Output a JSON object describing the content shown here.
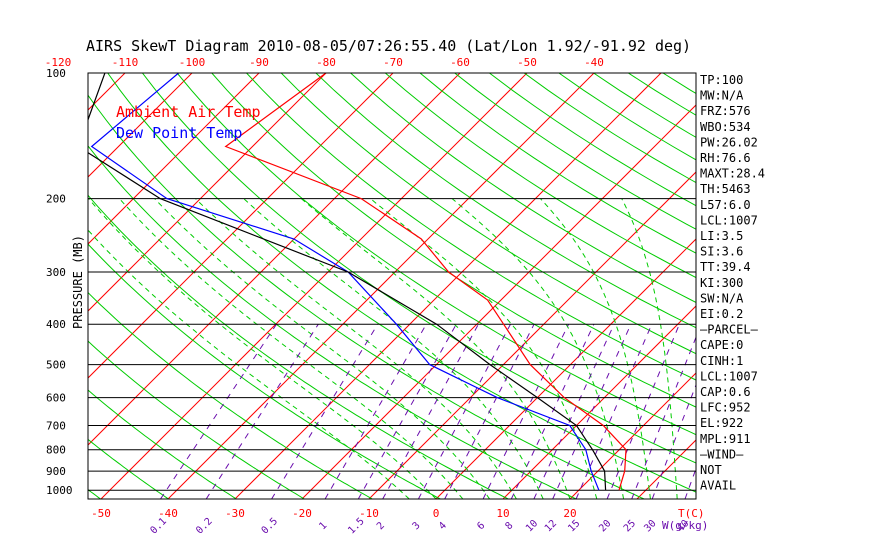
{
  "chart_data": {
    "type": "line",
    "title": "AIRS SkewT Diagram 2010-08-05/07:26:55.40 (Lat/Lon 1.92/-91.92 deg)",
    "ylabel": "PRESSURE (MB)",
    "xlabel_bottom_temp": "T(C)",
    "xlabel_bottom_mix": "W(g/kg)",
    "ylim": [
      1050,
      100
    ],
    "y_scale": "log",
    "xlim_bottom": [
      -50,
      30
    ],
    "grid": true,
    "legend_placement": "top-left",
    "pressure_ticks": [
      100,
      200,
      300,
      400,
      500,
      600,
      700,
      800,
      900,
      1000
    ],
    "temp_ticks_bottom": [
      -50,
      -40,
      -30,
      -20,
      -10,
      0,
      10,
      20
    ],
    "temp_ticks_top": [
      -120,
      -110,
      -100,
      -90,
      -80,
      -70,
      -60,
      -50,
      -40
    ],
    "mixing_ratio_ticks": [
      "0.1",
      "0.2",
      "0.5",
      "1",
      "1.5",
      "2",
      "3",
      "4",
      "6",
      "8",
      "10",
      "12",
      "15",
      "20",
      "25",
      "30",
      "40"
    ],
    "series": [
      {
        "name": "Ambient Air Temp",
        "color": "#ff0000",
        "points": [
          {
            "p": 100,
            "t": -80
          },
          {
            "p": 150,
            "t": -84
          },
          {
            "p": 200,
            "t": -56
          },
          {
            "p": 250,
            "t": -41
          },
          {
            "p": 300,
            "t": -32
          },
          {
            "p": 350,
            "t": -22
          },
          {
            "p": 400,
            "t": -16
          },
          {
            "p": 500,
            "t": -6
          },
          {
            "p": 600,
            "t": 4
          },
          {
            "p": 700,
            "t": 14
          },
          {
            "p": 800,
            "t": 21
          },
          {
            "p": 900,
            "t": 24
          },
          {
            "p": 1000,
            "t": 26
          }
        ]
      },
      {
        "name": "Dew Point Temp",
        "color": "#0000ff",
        "points": [
          {
            "p": 100,
            "t": -102
          },
          {
            "p": 150,
            "t": -104
          },
          {
            "p": 200,
            "t": -85
          },
          {
            "p": 250,
            "t": -60
          },
          {
            "p": 300,
            "t": -47
          },
          {
            "p": 400,
            "t": -32
          },
          {
            "p": 500,
            "t": -21
          },
          {
            "p": 600,
            "t": -6
          },
          {
            "p": 700,
            "t": 9
          },
          {
            "p": 800,
            "t": 15
          },
          {
            "p": 900,
            "t": 19
          },
          {
            "p": 1000,
            "t": 23
          }
        ]
      },
      {
        "name": "Parcel",
        "color": "#000000",
        "points": [
          {
            "p": 100,
            "t": -113
          },
          {
            "p": 150,
            "t": -106
          },
          {
            "p": 200,
            "t": -86
          },
          {
            "p": 300,
            "t": -47
          },
          {
            "p": 400,
            "t": -26
          },
          {
            "p": 500,
            "t": -12
          },
          {
            "p": 600,
            "t": 0
          },
          {
            "p": 700,
            "t": 10
          },
          {
            "p": 800,
            "t": 16
          },
          {
            "p": 900,
            "t": 21
          },
          {
            "p": 1000,
            "t": 24
          }
        ]
      }
    ]
  },
  "legend": {
    "ambient": "Ambient Air Temp",
    "dewpoint": "Dew Point Temp",
    "ambient_color": "#ff0000",
    "dewpoint_color": "#0000ff"
  },
  "indices": [
    "TP:100",
    "MW:N/A",
    "FRZ:576",
    "WBO:534",
    "PW:26.02",
    "RH:76.6",
    "MAXT:28.4",
    "TH:5463",
    "L57:6.0",
    "LCL:1007",
    "LI:3.5",
    "SI:3.6",
    "TT:39.4",
    "KI:300",
    "SW:N/A",
    "EI:0.2",
    "—PARCEL—",
    "CAPE:0",
    "CINH:1",
    "LCL:1007",
    "CAP:0.6",
    "LFC:952",
    "EL:922",
    "MPL:911",
    "—WIND—",
    "NOT",
    "AVAIL"
  ],
  "colors": {
    "isotherm": "#ff0000",
    "dry_adiabat": "#00cc00",
    "moist_adiabat": "#00cc00",
    "mixing_ratio": "#6a0dad",
    "isobar": "#000000",
    "temp_tick": "#ff0000",
    "mix_tick": "#6a0dad"
  }
}
